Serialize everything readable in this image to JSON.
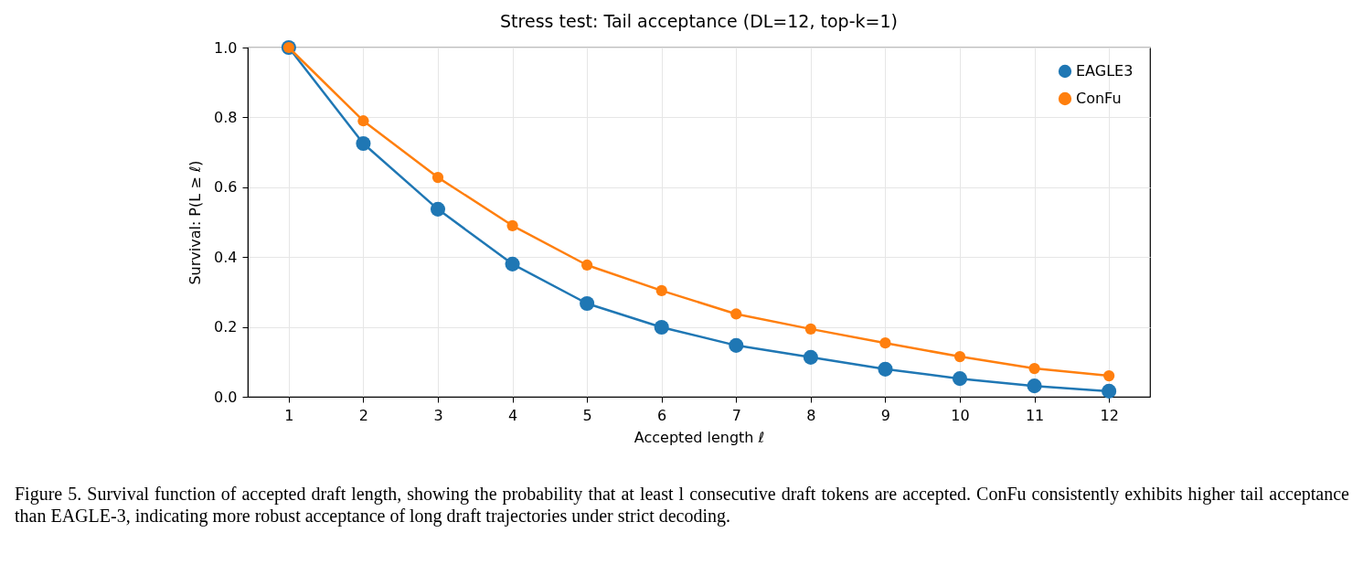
{
  "chart_data": {
    "type": "line",
    "title": "Stress test: Tail acceptance (DL=12, top-k=1)",
    "xlabel": "Accepted length ℓ",
    "ylabel": "Survival: P(L ≥ ℓ)",
    "x": [
      1,
      2,
      3,
      4,
      5,
      6,
      7,
      8,
      9,
      10,
      11,
      12
    ],
    "series": [
      {
        "name": "EAGLE3",
        "color": "#1f77b4",
        "values": [
          1.0,
          0.725,
          0.537,
          0.38,
          0.267,
          0.199,
          0.147,
          0.113,
          0.079,
          0.052,
          0.031,
          0.016
        ]
      },
      {
        "name": "ConFu",
        "color": "#ff7f0e",
        "values": [
          1.0,
          0.79,
          0.628,
          0.49,
          0.377,
          0.304,
          0.237,
          0.194,
          0.154,
          0.115,
          0.081,
          0.06
        ]
      }
    ],
    "xlim": [
      0.45,
      12.55
    ],
    "xticks": [
      1,
      2,
      3,
      4,
      5,
      6,
      7,
      8,
      9,
      10,
      11,
      12
    ],
    "ylim": [
      0,
      1
    ],
    "yticks": [
      {
        "value": 0,
        "label": "0.0"
      },
      0.2,
      0.4,
      0.6,
      0.8,
      {
        "value": 1,
        "label": "1.0"
      }
    ],
    "grid": true,
    "legend": "top right",
    "marker": "circle",
    "line_style": "solid",
    "annotations": [
      "Figure 5. Survival function of accepted draft length, showing the probability that at least l consecutive draft tokens are accepted. ConFu consistently exhibits higher tail acceptance than EAGLE-3, indicating more robust acceptance of long draft trajectories under strict decoding."
    ]
  }
}
